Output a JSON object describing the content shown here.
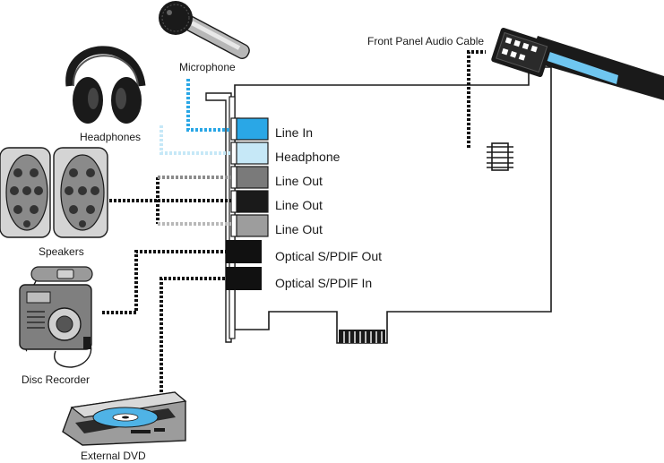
{
  "devices": {
    "microphone": "Microphone",
    "headphones": "Headphones",
    "speakers": "Speakers",
    "disc_recorder": "Disc Recorder",
    "external_dvd": "External DVD",
    "front_panel": "Front Panel Audio Cable"
  },
  "ports": [
    {
      "label": "Line In",
      "color": "#2aa7e6"
    },
    {
      "label": "Headphone",
      "color": "#c6e8f7"
    },
    {
      "label": "Line Out",
      "color": "#7a7a7a"
    },
    {
      "label": "Line Out",
      "color": "#1a1a1a"
    },
    {
      "label": "Line Out",
      "color": "#9d9d9d"
    },
    {
      "label": "Optical S/PDIF Out",
      "color": "#111111"
    },
    {
      "label": "Optical S/PDIF In",
      "color": "#111111"
    }
  ],
  "colors": {
    "mic_cable": "#2aa7e6",
    "headphone_cable": "#c6e8f7",
    "black_cable": "#111111",
    "gray_cable": "#8c8c8c",
    "light_gray_cable": "#b8b8b8",
    "ribbon": "#6fc6f0"
  }
}
